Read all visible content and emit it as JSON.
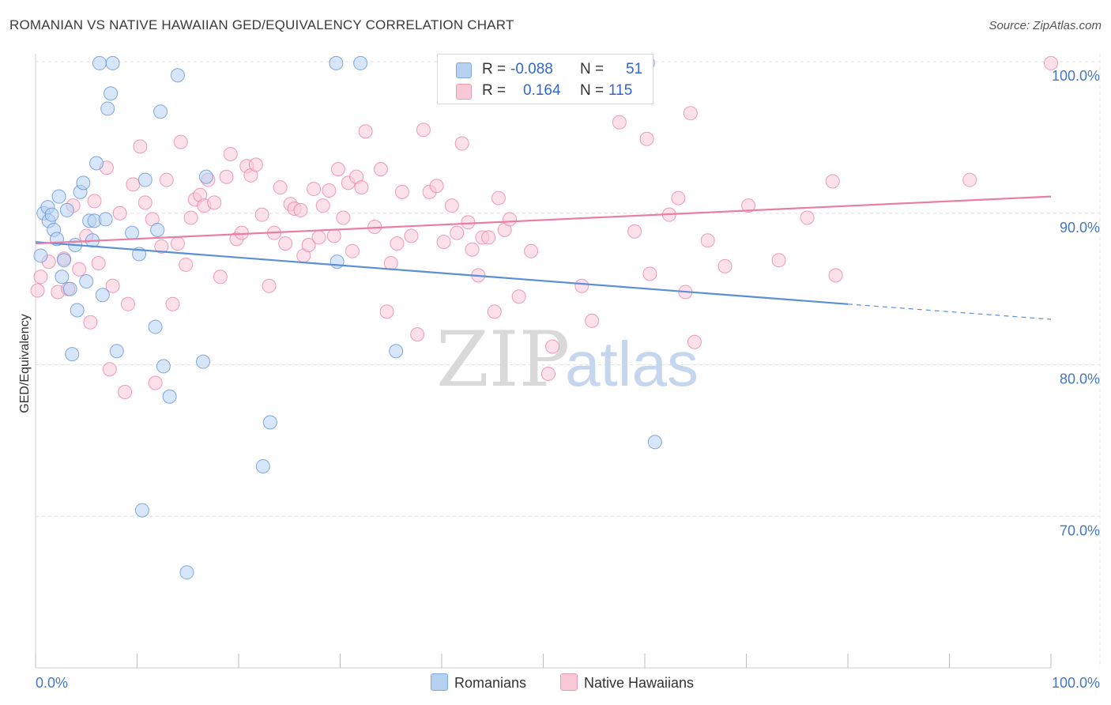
{
  "title": "ROMANIAN VS NATIVE HAWAIIAN GED/EQUIVALENCY CORRELATION CHART",
  "source": "Source: ZipAtlas.com",
  "legend": {
    "r_label": "R =",
    "n_label": "N =",
    "rows": [
      {
        "r": "-0.088",
        "n": "51",
        "color": "#a9c8f2"
      },
      {
        "r": "0.164",
        "n": "115",
        "color": "#f7b9cc"
      }
    ]
  },
  "bottom_legend": [
    "Romanians",
    "Native Hawaiians"
  ],
  "watermark": {
    "zip": "ZIP",
    "atlas": "atlas"
  },
  "chart_data": {
    "type": "scatter",
    "title": "ROMANIAN VS NATIVE HAWAIIAN GED/EQUIVALENCY CORRELATION CHART",
    "xlabel": "",
    "ylabel": "GED/Equivalency",
    "xlim": [
      0,
      100
    ],
    "ylim": [
      60,
      100
    ],
    "x_tick_labels": [
      "0.0%",
      "100.0%"
    ],
    "y_ticks": [
      100,
      90,
      80,
      70
    ],
    "y_tick_labels": [
      "100.0%",
      "90.0%",
      "80.0%",
      "70.0%"
    ],
    "grid": true,
    "legend_position": "top-center",
    "series": [
      {
        "name": "Romanians",
        "color": "#5b8fd6",
        "fill": "#b7d1f3",
        "r": -0.088,
        "n": 51,
        "trend": {
          "x0": 0,
          "y0": 88.1,
          "x1": 80,
          "y1": 84.0,
          "dashed_to_x": 100,
          "dashed_to_y": 83.0
        },
        "points": [
          [
            0.5,
            87.2
          ],
          [
            0.8,
            90.0
          ],
          [
            1.2,
            90.4
          ],
          [
            1.3,
            89.5
          ],
          [
            1.6,
            89.9
          ],
          [
            1.8,
            88.9
          ],
          [
            2.1,
            88.3
          ],
          [
            2.3,
            91.1
          ],
          [
            2.6,
            85.8
          ],
          [
            2.8,
            86.9
          ],
          [
            3.1,
            90.2
          ],
          [
            3.4,
            85.0
          ],
          [
            3.6,
            80.7
          ],
          [
            3.9,
            87.9
          ],
          [
            4.1,
            83.6
          ],
          [
            4.4,
            91.4
          ],
          [
            4.7,
            92.0
          ],
          [
            5.0,
            85.5
          ],
          [
            5.3,
            89.5
          ],
          [
            5.6,
            88.2
          ],
          [
            5.8,
            89.5
          ],
          [
            6.0,
            93.3
          ],
          [
            6.3,
            99.9
          ],
          [
            6.6,
            84.6
          ],
          [
            6.9,
            89.6
          ],
          [
            7.1,
            96.9
          ],
          [
            7.4,
            97.9
          ],
          [
            7.6,
            99.9
          ],
          [
            8.0,
            80.9
          ],
          [
            9.5,
            88.7
          ],
          [
            10.2,
            87.3
          ],
          [
            10.5,
            70.4
          ],
          [
            10.8,
            92.2
          ],
          [
            11.8,
            82.5
          ],
          [
            12.0,
            88.9
          ],
          [
            12.3,
            96.7
          ],
          [
            12.6,
            79.9
          ],
          [
            13.2,
            77.9
          ],
          [
            14.0,
            99.1
          ],
          [
            14.9,
            66.3
          ],
          [
            16.5,
            80.2
          ],
          [
            16.8,
            92.4
          ],
          [
            22.4,
            73.3
          ],
          [
            23.1,
            76.2
          ],
          [
            29.7,
            86.8
          ],
          [
            29.6,
            99.9
          ],
          [
            32.0,
            99.9
          ],
          [
            35.5,
            80.9
          ],
          [
            54.0,
            99.9
          ],
          [
            60.3,
            99.9
          ],
          [
            61.0,
            74.9
          ]
        ]
      },
      {
        "name": "Native Hawaiians",
        "color": "#e87ea1",
        "fill": "#f9c9d8",
        "r": 0.164,
        "n": 115,
        "trend": {
          "x0": 0,
          "y0": 88.0,
          "x1": 100,
          "y1": 91.1
        },
        "points": [
          [
            0.2,
            84.9
          ],
          [
            0.5,
            85.8
          ],
          [
            1.3,
            86.8
          ],
          [
            2.2,
            84.8
          ],
          [
            2.8,
            87.0
          ],
          [
            3.2,
            85.0
          ],
          [
            3.7,
            90.5
          ],
          [
            4.3,
            86.3
          ],
          [
            5.0,
            88.5
          ],
          [
            5.4,
            82.8
          ],
          [
            5.8,
            90.8
          ],
          [
            6.2,
            86.7
          ],
          [
            7.0,
            93.0
          ],
          [
            7.3,
            79.7
          ],
          [
            7.6,
            85.2
          ],
          [
            8.3,
            90.0
          ],
          [
            8.8,
            78.2
          ],
          [
            9.1,
            84.0
          ],
          [
            9.6,
            91.9
          ],
          [
            10.3,
            94.4
          ],
          [
            10.8,
            90.7
          ],
          [
            11.5,
            89.6
          ],
          [
            11.8,
            78.8
          ],
          [
            12.4,
            87.8
          ],
          [
            12.9,
            92.2
          ],
          [
            13.5,
            84.0
          ],
          [
            14.0,
            88.0
          ],
          [
            14.3,
            94.7
          ],
          [
            14.8,
            86.6
          ],
          [
            15.3,
            89.7
          ],
          [
            15.7,
            90.9
          ],
          [
            16.2,
            91.2
          ],
          [
            16.6,
            90.5
          ],
          [
            17.0,
            92.2
          ],
          [
            17.6,
            90.7
          ],
          [
            18.2,
            85.8
          ],
          [
            18.8,
            92.4
          ],
          [
            19.2,
            93.9
          ],
          [
            19.8,
            88.3
          ],
          [
            20.3,
            88.7
          ],
          [
            20.8,
            93.1
          ],
          [
            21.2,
            92.5
          ],
          [
            21.7,
            93.2
          ],
          [
            22.3,
            89.9
          ],
          [
            23.0,
            85.2
          ],
          [
            23.5,
            88.7
          ],
          [
            24.1,
            91.7
          ],
          [
            24.6,
            88.0
          ],
          [
            25.1,
            90.6
          ],
          [
            25.5,
            90.3
          ],
          [
            26.1,
            90.2
          ],
          [
            26.4,
            87.2
          ],
          [
            26.9,
            87.9
          ],
          [
            27.4,
            91.6
          ],
          [
            27.9,
            88.4
          ],
          [
            28.3,
            90.5
          ],
          [
            28.9,
            91.5
          ],
          [
            29.4,
            88.5
          ],
          [
            29.8,
            92.9
          ],
          [
            30.3,
            89.7
          ],
          [
            30.8,
            92.0
          ],
          [
            31.2,
            87.5
          ],
          [
            31.6,
            92.4
          ],
          [
            32.1,
            91.7
          ],
          [
            32.5,
            95.4
          ],
          [
            33.4,
            89.1
          ],
          [
            34.0,
            92.9
          ],
          [
            34.6,
            83.5
          ],
          [
            35.0,
            86.7
          ],
          [
            35.6,
            88.0
          ],
          [
            36.1,
            91.4
          ],
          [
            37.0,
            88.5
          ],
          [
            37.6,
            82.0
          ],
          [
            38.2,
            95.5
          ],
          [
            38.8,
            91.4
          ],
          [
            39.5,
            91.8
          ],
          [
            40.2,
            88.1
          ],
          [
            41.0,
            90.5
          ],
          [
            41.5,
            88.7
          ],
          [
            42.0,
            94.6
          ],
          [
            42.6,
            89.4
          ],
          [
            43.0,
            87.6
          ],
          [
            43.6,
            85.9
          ],
          [
            44.0,
            88.4
          ],
          [
            44.6,
            88.4
          ],
          [
            45.2,
            83.5
          ],
          [
            45.6,
            91.0
          ],
          [
            46.2,
            88.9
          ],
          [
            46.7,
            89.6
          ],
          [
            47.6,
            84.5
          ],
          [
            48.8,
            87.5
          ],
          [
            50.5,
            79.4
          ],
          [
            50.9,
            81.2
          ],
          [
            53.8,
            85.2
          ],
          [
            54.8,
            82.9
          ],
          [
            57.5,
            96.0
          ],
          [
            59.0,
            88.8
          ],
          [
            60.2,
            94.9
          ],
          [
            60.5,
            86.0
          ],
          [
            62.4,
            89.9
          ],
          [
            63.3,
            91.0
          ],
          [
            64.0,
            84.8
          ],
          [
            64.5,
            96.6
          ],
          [
            64.9,
            81.5
          ],
          [
            66.2,
            88.2
          ],
          [
            67.9,
            86.5
          ],
          [
            70.2,
            90.5
          ],
          [
            73.2,
            86.9
          ],
          [
            76.0,
            89.7
          ],
          [
            78.8,
            85.9
          ],
          [
            78.5,
            92.1
          ],
          [
            92.0,
            92.2
          ],
          [
            100.0,
            99.9
          ]
        ]
      }
    ]
  }
}
